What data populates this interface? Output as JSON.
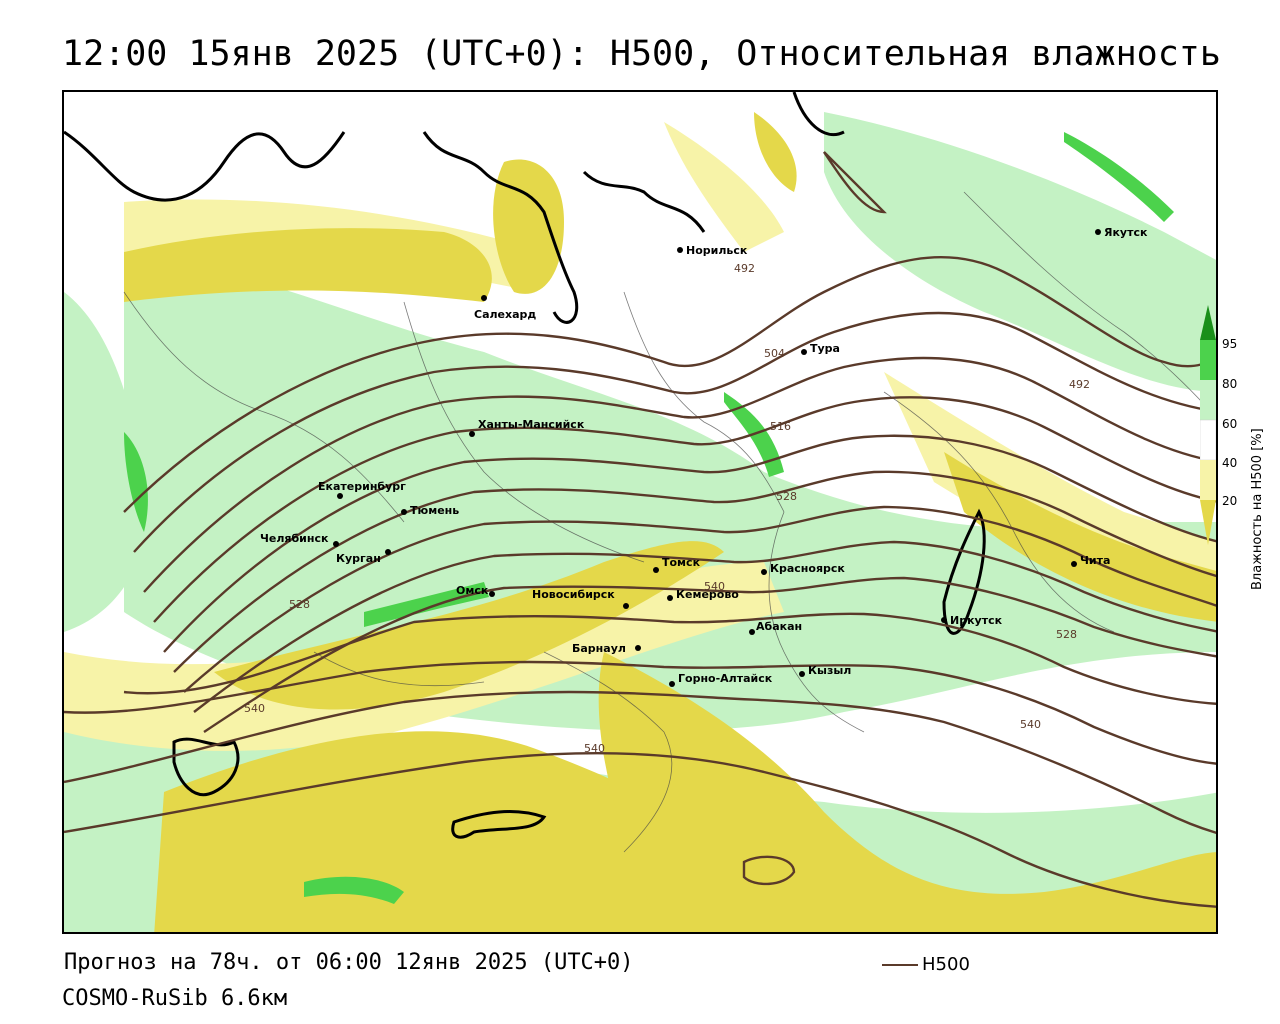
{
  "title": "12:00 15янв 2025 (UTC+0): H500, Относительная влажность",
  "footer": {
    "forecast": "Прогноз на 78ч. от 06:00 12янв 2025 (UTC+0)",
    "model": "COSMO-RuSib 6.6км",
    "legend_h500": "H500"
  },
  "colorbar": {
    "title": "Влажность на H500 [%]",
    "ticks": [
      "95",
      "80",
      "60",
      "40",
      "20"
    ],
    "colors": [
      "#1a8f1a",
      "#4cd24c",
      "#c4f2c4",
      "#ffffff",
      "#f7f3a8",
      "#e4d84a"
    ]
  },
  "contour_labels": [
    "492",
    "492",
    "504",
    "516",
    "528",
    "528",
    "528",
    "540",
    "540",
    "540",
    "540"
  ],
  "cities": [
    {
      "name": "Норильск"
    },
    {
      "name": "Якутск"
    },
    {
      "name": "Салехард"
    },
    {
      "name": "Тура"
    },
    {
      "name": "Ханты-Мансийск"
    },
    {
      "name": "Екатеринбург"
    },
    {
      "name": "Тюмень"
    },
    {
      "name": "Челябинск"
    },
    {
      "name": "Курган"
    },
    {
      "name": "Омск"
    },
    {
      "name": "Томск"
    },
    {
      "name": "Красноярск"
    },
    {
      "name": "Новосибирск"
    },
    {
      "name": "Кемерово"
    },
    {
      "name": "Абакан"
    },
    {
      "name": "Барнаул"
    },
    {
      "name": "Горно-Алтайск"
    },
    {
      "name": "Кызыл"
    },
    {
      "name": "Иркутск"
    },
    {
      "name": "Чита"
    }
  ]
}
